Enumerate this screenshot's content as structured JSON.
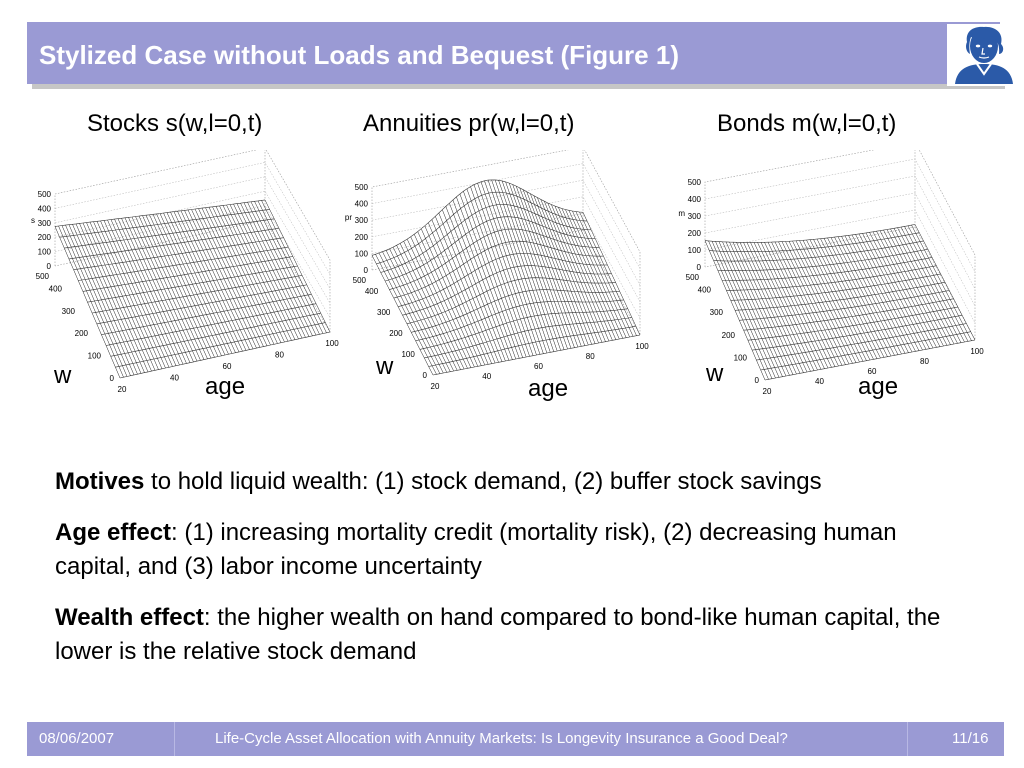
{
  "header": {
    "title": "Stylized Case without Loads and Bequest (Figure 1)",
    "logo_icon": "goethe-portrait-logo-icon"
  },
  "figure": {
    "panels": [
      {
        "title": "Stocks s(w,l=0,t)",
        "z_label": "s",
        "z_ticks": [
          "500",
          "400",
          "300",
          "200",
          "100",
          "0"
        ],
        "w_ticks": [
          "500",
          "400",
          "300",
          "200",
          "100",
          "0"
        ],
        "age_ticks": [
          "20",
          "40",
          "60",
          "80",
          "100"
        ],
        "w_label": "w",
        "age_label": "age"
      },
      {
        "title": "Annuities pr(w,l=0,t)",
        "z_label": "pr",
        "z_ticks": [
          "500",
          "400",
          "300",
          "200",
          "100",
          "0"
        ],
        "w_ticks": [
          "500",
          "400",
          "300",
          "200",
          "100",
          "0"
        ],
        "age_ticks": [
          "20",
          "40",
          "60",
          "80",
          "100"
        ],
        "w_label": "w",
        "age_label": "age"
      },
      {
        "title": "Bonds m(w,l=0,t)",
        "z_label": "m",
        "z_ticks": [
          "500",
          "400",
          "300",
          "200",
          "100",
          "0"
        ],
        "w_ticks": [
          "500",
          "400",
          "300",
          "200",
          "100",
          "0"
        ],
        "age_ticks": [
          "20",
          "40",
          "60",
          "80",
          "100"
        ],
        "w_label": "w",
        "age_label": "age"
      }
    ]
  },
  "body": {
    "motives": {
      "bold": "Motives",
      "text": " to hold liquid wealth: (1) stock demand, (2) buffer stock savings"
    },
    "age_effect": {
      "bold": "Age effect",
      "text": ": (1) increasing mortality credit (mortality risk), (2) decreasing human capital, and (3) labor income uncertainty"
    },
    "wealth_effect": {
      "bold": "Wealth effect",
      "text": ": the higher wealth on hand compared to bond-like human capital, the lower is the relative stock demand"
    }
  },
  "footer": {
    "date": "08/06/2007",
    "talk_title": "Life-Cycle Asset Allocation with Annuity Markets: Is Longevity Insurance a Good Deal?",
    "page": "11/16"
  },
  "colors": {
    "bar": "#9a9ad4",
    "logo": "#2b5aa8"
  }
}
